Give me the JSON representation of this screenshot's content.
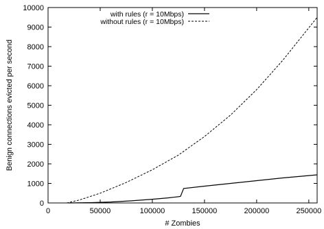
{
  "chart_data": {
    "type": "line",
    "title": "",
    "xlabel": "# Zombies",
    "ylabel": "Benign connections evicted per second",
    "xlim": [
      0,
      258000
    ],
    "ylim": [
      0,
      10000
    ],
    "xticks": [
      0,
      50000,
      100000,
      150000,
      200000,
      250000
    ],
    "yticks": [
      0,
      1000,
      2000,
      3000,
      4000,
      5000,
      6000,
      7000,
      8000,
      9000,
      10000
    ],
    "xtick_labels": [
      "0",
      "50000",
      "100000",
      "150000",
      "200000",
      "250000"
    ],
    "ytick_labels": [
      "0",
      "1000",
      "2000",
      "3000",
      "4000",
      "5000",
      "6000",
      "7000",
      "8000",
      "9000",
      "10000"
    ],
    "grid": false,
    "legend_position": "top-center",
    "series": [
      {
        "name": "with rules (r = 10Mbps)",
        "style": "solid",
        "color": "#000000",
        "x": [
          20000,
          40000,
          60000,
          80000,
          100000,
          115000,
          125000,
          127000,
          130000,
          150000,
          175000,
          200000,
          225000,
          258000
        ],
        "y": [
          0,
          15,
          50,
          110,
          190,
          260,
          320,
          340,
          740,
          860,
          1000,
          1140,
          1280,
          1440
        ]
      },
      {
        "name": "without rules (r = 10Mbps)",
        "style": "dashed",
        "color": "#000000",
        "x": [
          18000,
          30000,
          50000,
          75000,
          100000,
          125000,
          150000,
          175000,
          200000,
          225000,
          258000
        ],
        "y": [
          0,
          150,
          500,
          1050,
          1700,
          2450,
          3400,
          4500,
          5800,
          7300,
          9500
        ]
      }
    ]
  }
}
